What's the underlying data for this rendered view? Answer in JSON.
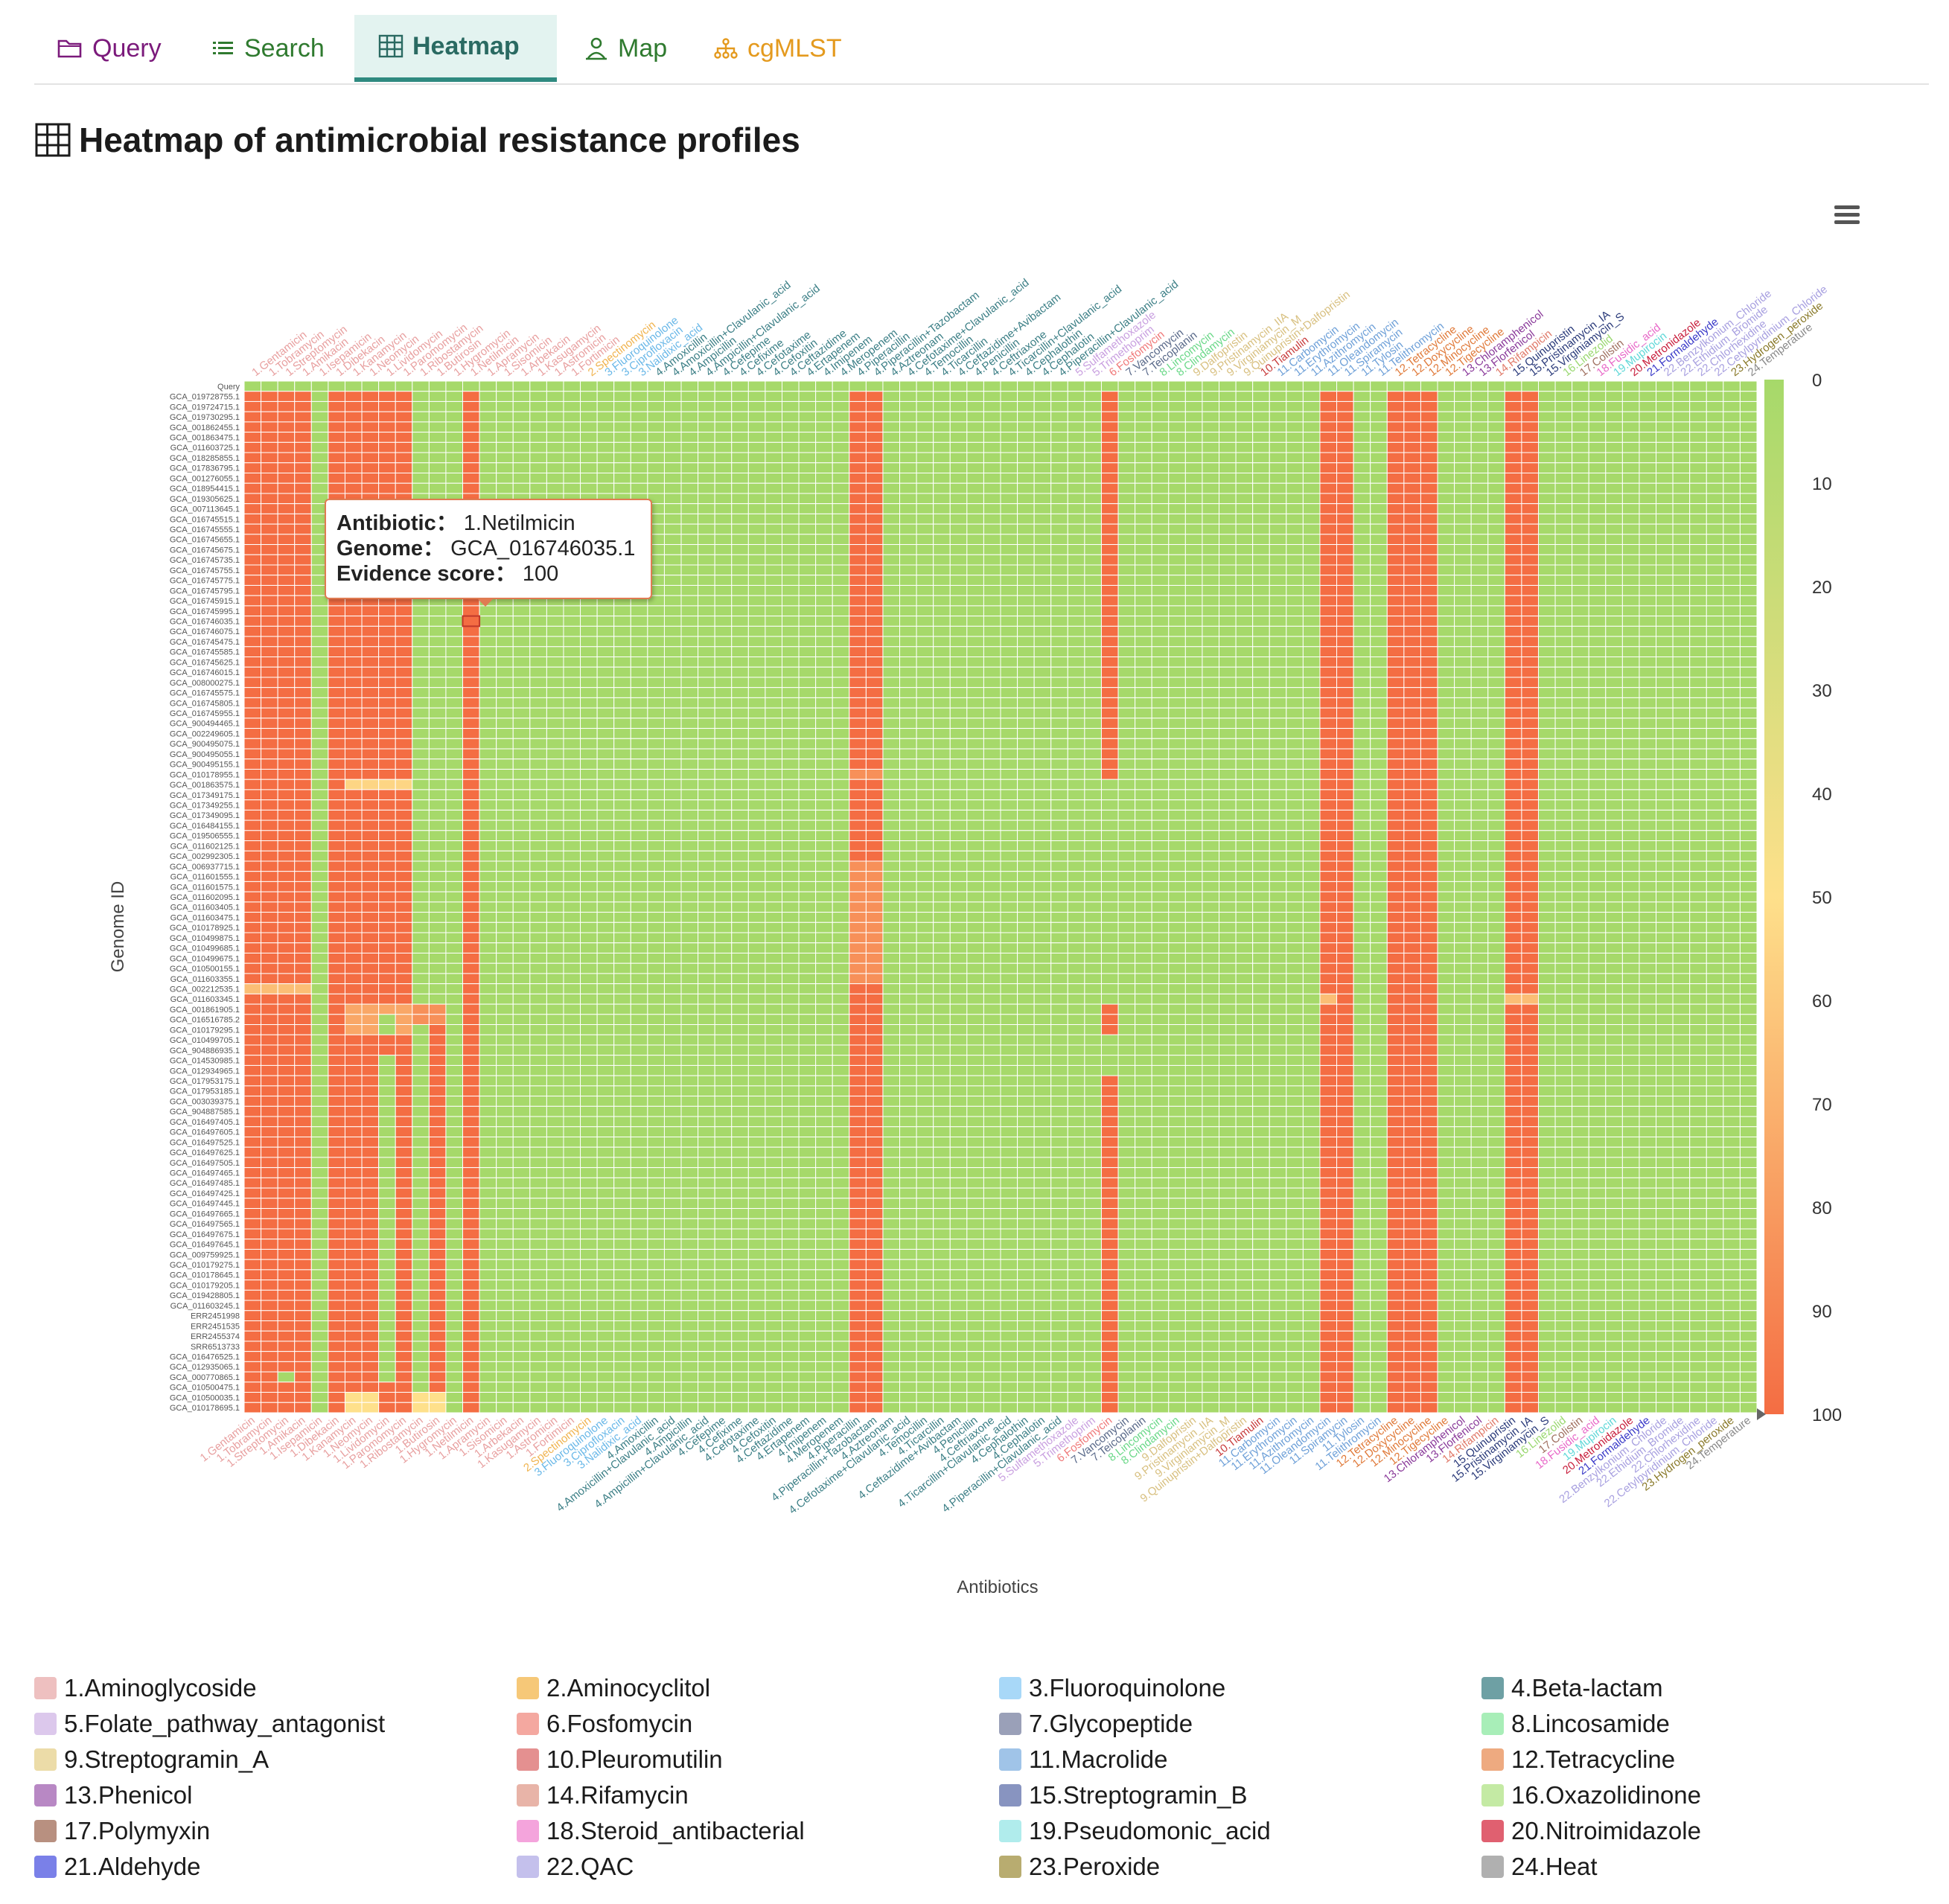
{
  "nav": {
    "tabs": [
      {
        "label": "Query",
        "icon": "folder-icon",
        "color": "#7b1a7b"
      },
      {
        "label": "Search",
        "icon": "list-icon",
        "color": "#2f7a2f"
      },
      {
        "label": "Heatmap",
        "icon": "grid-icon",
        "color": "#2a6a62",
        "active": true
      },
      {
        "label": "Map",
        "icon": "person-pin-icon",
        "color": "#2f7a2f"
      },
      {
        "label": "cgMLST",
        "icon": "tree-icon",
        "color": "#e49a1e"
      }
    ]
  },
  "page": {
    "title": "Heatmap of antimicrobial resistance profiles"
  },
  "tooltip": {
    "antibiotic_label": "Antibiotic：",
    "antibiotic_value": "1.Netilmicin",
    "genome_label": "Genome：",
    "genome_value": "GCA_016746035.1",
    "score_label": "Evidence score：",
    "score_value": "100"
  },
  "chart_data": {
    "type": "heatmap",
    "xlabel": "Antibiotics",
    "ylabel": "Genome ID",
    "colorscale": {
      "min": 0,
      "max": 100,
      "low_color": "#a6d96a",
      "mid_color": "#fee08b",
      "high_color": "#f46d43",
      "ticks": [
        0,
        10,
        20,
        30,
        40,
        50,
        60,
        70,
        80,
        90,
        100
      ]
    },
    "antibiotics": [
      "1.Gentamicin",
      "1.Tobramycin",
      "1.Streptomycin",
      "1.Amikacin",
      "1.Isepamicin",
      "1.Dibekacin",
      "1.Kanamycin",
      "1.Neomycin",
      "1.Lividomycin",
      "1.Paromomycin",
      "1.Ribostamycin",
      "1.Butirosin",
      "1.Hygromycin",
      "1.Netilmicin",
      "1.Apramycin",
      "1.Sisomicin",
      "1.Arbekacin",
      "1.Kasugamycin",
      "1.Astromicin",
      "1.Fortimicin",
      "2.Spectinomycin",
      "3.Fluoroquinolone",
      "3.Ciprofloxacin",
      "3.Nalidixic_acid",
      "4.Amoxicillin",
      "4.Amoxicillin+Clavulanic_acid",
      "4.Ampicillin",
      "4.Ampicillin+Clavulanic_acid",
      "4.Cefepime",
      "4.Cefixime",
      "4.Cefotaxime",
      "4.Cefoxitin",
      "4.Ceftazidime",
      "4.Ertapenem",
      "4.Imipenem",
      "4.Meropenem",
      "4.Piperacillin",
      "4.Piperacillin+Tazobactam",
      "4.Aztreonam",
      "4.Cefotaxime+Clavulanic_acid",
      "4.Temocillin",
      "4.Ticarcillin",
      "4.Ceftazidime+Avibactam",
      "4.Penicillin",
      "4.Ceftriaxone",
      "4.Ticarcillin+Clavulanic_acid",
      "4.Cephalothin",
      "4.Cephalotin",
      "4.Piperacillin+Clavulanic_acid",
      "5.Sulfamethoxazole",
      "5.Trimethoprim",
      "6.Fosfomycin",
      "7.Vancomycin",
      "7.Teicoplanin",
      "8.Lincomycin",
      "8.Clindamycin",
      "9.Dalfopristin",
      "9.Pristinamycin_IIA",
      "9.Virginiamycin_M",
      "9.Quinupristin+Dalfopristin",
      "10.Tiamulin",
      "11.Carbomycin",
      "11.Erythromycin",
      "11.Azithromycin",
      "11.Oleandomycin",
      "11.Spiramycin",
      "11.Tylosin",
      "11.Telithromycin",
      "12.Tetracycline",
      "12.Doxycycline",
      "12.Minocycline",
      "12.Tigecycline",
      "13.Chloramphenicol",
      "13.Florfenicol",
      "14.Rifampicin",
      "15.Quinupristin",
      "15.Pristinamycin_IA",
      "15.Virginiamycin_S",
      "16.Linezolid",
      "17.Colistin",
      "18.Fusidic_acid",
      "19.Mupirocin",
      "20.Metronidazole",
      "21.Formaldehyde",
      "22.Benzylkonium_Chloride",
      "22.Ethidium_Bromide",
      "22.Chlorhexidine",
      "22.Cetylpyridinium_Chloride",
      "23.Hydrogen_peroxide",
      "24.Temperature"
    ],
    "antibiotic_label_colors": [
      "#e8a0a0",
      "#e8a0a0",
      "#e8a0a0",
      "#e8a0a0",
      "#e8a0a0",
      "#e8a0a0",
      "#e8a0a0",
      "#e8a0a0",
      "#e8a0a0",
      "#e8a0a0",
      "#e8a0a0",
      "#e8a0a0",
      "#e8a0a0",
      "#e8a0a0",
      "#e8a0a0",
      "#e8a0a0",
      "#e8a0a0",
      "#e8a0a0",
      "#e8a0a0",
      "#e8a0a0",
      "#f0b450",
      "#6ab8e8",
      "#6ab8e8",
      "#6ab8e8",
      "#3c7f86",
      "#3c7f86",
      "#3c7f86",
      "#3c7f86",
      "#3c7f86",
      "#3c7f86",
      "#3c7f86",
      "#3c7f86",
      "#3c7f86",
      "#3c7f86",
      "#3c7f86",
      "#3c7f86",
      "#3c7f86",
      "#3c7f86",
      "#3c7f86",
      "#3c7f86",
      "#3c7f86",
      "#3c7f86",
      "#3c7f86",
      "#3c7f86",
      "#3c7f86",
      "#3c7f86",
      "#3c7f86",
      "#3c7f86",
      "#3c7f86",
      "#c9a0e0",
      "#c9a0e0",
      "#f07a7a",
      "#5a6a8a",
      "#5a6a8a",
      "#6ad888",
      "#6ad888",
      "#d8c080",
      "#d8c080",
      "#d8c080",
      "#d8c080",
      "#c83c3c",
      "#6ea0d8",
      "#6ea0d8",
      "#6ea0d8",
      "#6ea0d8",
      "#6ea0d8",
      "#6ea0d8",
      "#6ea0d8",
      "#e07a3a",
      "#e07a3a",
      "#e07a3a",
      "#e07a3a",
      "#8a3a9a",
      "#8a3a9a",
      "#e07a6a",
      "#2a3a7a",
      "#2a3a7a",
      "#2a3a7a",
      "#9ad870",
      "#a07060",
      "#e868c8",
      "#60d8d8",
      "#c81e3c",
      "#3a3ac8",
      "#a8a0e0",
      "#a8a0e0",
      "#a8a0e0",
      "#a8a0e0",
      "#8a7a2a",
      "#8a8a8a"
    ],
    "genomes": [
      "Query",
      "GCA_019728755.1",
      "GCA_019724715.1",
      "GCA_019730295.1",
      "GCA_001862455.1",
      "GCA_001863475.1",
      "GCA_011603725.1",
      "GCA_018285855.1",
      "GCA_017836795.1",
      "GCA_001276055.1",
      "GCA_018954415.1",
      "GCA_019305625.1",
      "GCA_007113645.1",
      "GCA_016745515.1",
      "GCA_016745555.1",
      "GCA_016745655.1",
      "GCA_016745675.1",
      "GCA_016745735.1",
      "GCA_016745755.1",
      "GCA_016745775.1",
      "GCA_016745795.1",
      "GCA_016745915.1",
      "GCA_016745995.1",
      "GCA_016746035.1",
      "GCA_016746075.1",
      "GCA_016745475.1",
      "GCA_016745585.1",
      "GCA_016745625.1",
      "GCA_016746015.1",
      "GCA_008000275.1",
      "GCA_016745575.1",
      "GCA_016745805.1",
      "GCA_016745955.1",
      "GCA_900494465.1",
      "GCA_002249605.1",
      "GCA_900495075.1",
      "GCA_900495055.1",
      "GCA_900495155.1",
      "GCA_010178955.1",
      "GCA_001863575.1",
      "GCA_017349175.1",
      "GCA_017349255.1",
      "GCA_017349095.1",
      "GCA_016484155.1",
      "GCA_019506555.1",
      "GCA_011602125.1",
      "GCA_002992305.1",
      "GCA_006937715.1",
      "GCA_011601555.1",
      "GCA_011601575.1",
      "GCA_011602095.1",
      "GCA_011603405.1",
      "GCA_011603475.1",
      "GCA_010178925.1",
      "GCA_010499875.1",
      "GCA_010499685.1",
      "GCA_010499675.1",
      "GCA_010500155.1",
      "GCA_011603355.1",
      "GCA_002212535.1",
      "GCA_011603345.1",
      "GCA_001861905.1",
      "GCA_016516785.2",
      "GCA_010179295.1",
      "GCA_010499705.1",
      "GCA_904886935.1",
      "GCA_014530985.1",
      "GCA_012934965.1",
      "GCA_017953175.1",
      "GCA_017953185.1",
      "GCA_003039375.1",
      "GCA_904887585.1",
      "GCA_016497405.1",
      "GCA_016497605.1",
      "GCA_016497525.1",
      "GCA_016497625.1",
      "GCA_016497505.1",
      "GCA_016497465.1",
      "GCA_016497485.1",
      "GCA_016497425.1",
      "GCA_016497445.1",
      "GCA_016497665.1",
      "GCA_016497565.1",
      "GCA_016497675.1",
      "GCA_016497645.1",
      "GCA_009759925.1",
      "GCA_010179275.1",
      "GCA_010178645.1",
      "GCA_010179205.1",
      "GCA_019428805.1",
      "GCA_011603245.1",
      "ERR2451998",
      "ERR2451535",
      "ERR2455374",
      "SRR6513733",
      "GCA_016476525.1",
      "GCA_012935065.1",
      "GCA_000770865.1",
      "GCA_010500475.1",
      "GCA_010500035.1",
      "GCA_010178695.1"
    ],
    "base_resistant_columns": [
      0,
      1,
      2,
      3,
      5,
      6,
      7,
      8,
      9,
      13,
      36,
      37,
      51,
      64,
      65,
      68,
      69,
      70,
      75,
      76
    ],
    "overrides": [
      {
        "cols": [
          51
        ],
        "rows_from": 39,
        "rows_to": 60,
        "value": 0
      },
      {
        "cols": [
          51
        ],
        "rows_from": 64,
        "rows_to": 67,
        "value": 0
      },
      {
        "cols": [
          51
        ],
        "rows_from": 98,
        "rows_to": 100,
        "value": 100
      },
      {
        "cols": [
          6,
          7,
          8,
          9
        ],
        "rows_from": 39,
        "rows_to": 39,
        "value": 55
      },
      {
        "cols": [
          36,
          37
        ],
        "rows_from": 38,
        "rows_to": 38,
        "value": 85
      },
      {
        "cols": [
          36,
          37
        ],
        "rows_from": 47,
        "rows_to": 58,
        "value": 85
      },
      {
        "cols": [
          0,
          1,
          2,
          3
        ],
        "rows_from": 59,
        "rows_to": 59,
        "value": 65
      },
      {
        "cols": [
          64,
          75,
          76
        ],
        "rows_from": 60,
        "rows_to": 60,
        "value": 65
      },
      {
        "cols": [
          6,
          7,
          8,
          9
        ],
        "rows_from": 61,
        "rows_to": 63,
        "value": 75
      },
      {
        "cols": [
          8
        ],
        "rows_from": 62,
        "rows_to": 63,
        "value": 0
      },
      {
        "cols": [
          10,
          11
        ],
        "rows_from": 61,
        "rows_to": 62,
        "value": 85
      },
      {
        "cols": [
          8
        ],
        "rows_from": 66,
        "rows_to": 97,
        "value": 0
      },
      {
        "cols": [
          11
        ],
        "rows_from": 63,
        "rows_to": 100,
        "value": 100
      },
      {
        "cols": [
          11
        ],
        "rows_from": 99,
        "rows_to": 100,
        "value": 55
      },
      {
        "cols": [
          2
        ],
        "rows_from": 97,
        "rows_to": 97,
        "value": 0
      },
      {
        "cols": [
          8
        ],
        "rows_from": 98,
        "rows_to": 98,
        "value": 100
      },
      {
        "cols": [
          6,
          7,
          10,
          11
        ],
        "rows_from": 99,
        "rows_to": 100,
        "value": 50
      }
    ],
    "hover_cell": {
      "antibiotic": "1.Netilmicin",
      "genome": "GCA_016746035.1",
      "value": 100
    }
  },
  "legend": {
    "items": [
      {
        "label": "1.Aminoglycoside",
        "color": "#eec0c0"
      },
      {
        "label": "2.Aminocyclitol",
        "color": "#f6c878"
      },
      {
        "label": "3.Fluoroquinolone",
        "color": "#a8d8f8"
      },
      {
        "label": "4.Beta-lactam",
        "color": "#6ea0a4"
      },
      {
        "label": "5.Folate_pathway_antagonist",
        "color": "#dcc8ec"
      },
      {
        "label": "6.Fosfomycin",
        "color": "#f4a8a0"
      },
      {
        "label": "7.Glycopeptide",
        "color": "#9aa0b8"
      },
      {
        "label": "8.Lincosamide",
        "color": "#a8eeb8"
      },
      {
        "label": "9.Streptogramin_A",
        "color": "#ecdca8"
      },
      {
        "label": "10.Pleuromutilin",
        "color": "#e49090"
      },
      {
        "label": "11.Macrolide",
        "color": "#a0c4e8"
      },
      {
        "label": "12.Tetracycline",
        "color": "#eeaa80"
      },
      {
        "label": "13.Phenicol",
        "color": "#b888c4"
      },
      {
        "label": "14.Rifamycin",
        "color": "#e8b4a8"
      },
      {
        "label": "15.Streptogramin_B",
        "color": "#8894c0"
      },
      {
        "label": "16.Oxazolidinone",
        "color": "#c4eaa4"
      },
      {
        "label": "17.Polymyxin",
        "color": "#b89080"
      },
      {
        "label": "18.Steroid_antibacterial",
        "color": "#f4a4dc"
      },
      {
        "label": "19.Pseudomonic_acid",
        "color": "#b0ecec"
      },
      {
        "label": "20.Nitroimidazole",
        "color": "#e06070"
      },
      {
        "label": "21.Aldehyde",
        "color": "#7a80e8"
      },
      {
        "label": "22.QAC",
        "color": "#c4c0ec"
      },
      {
        "label": "23.Peroxide",
        "color": "#b8ac70"
      },
      {
        "label": "24.Heat",
        "color": "#b0b0b0"
      }
    ]
  }
}
